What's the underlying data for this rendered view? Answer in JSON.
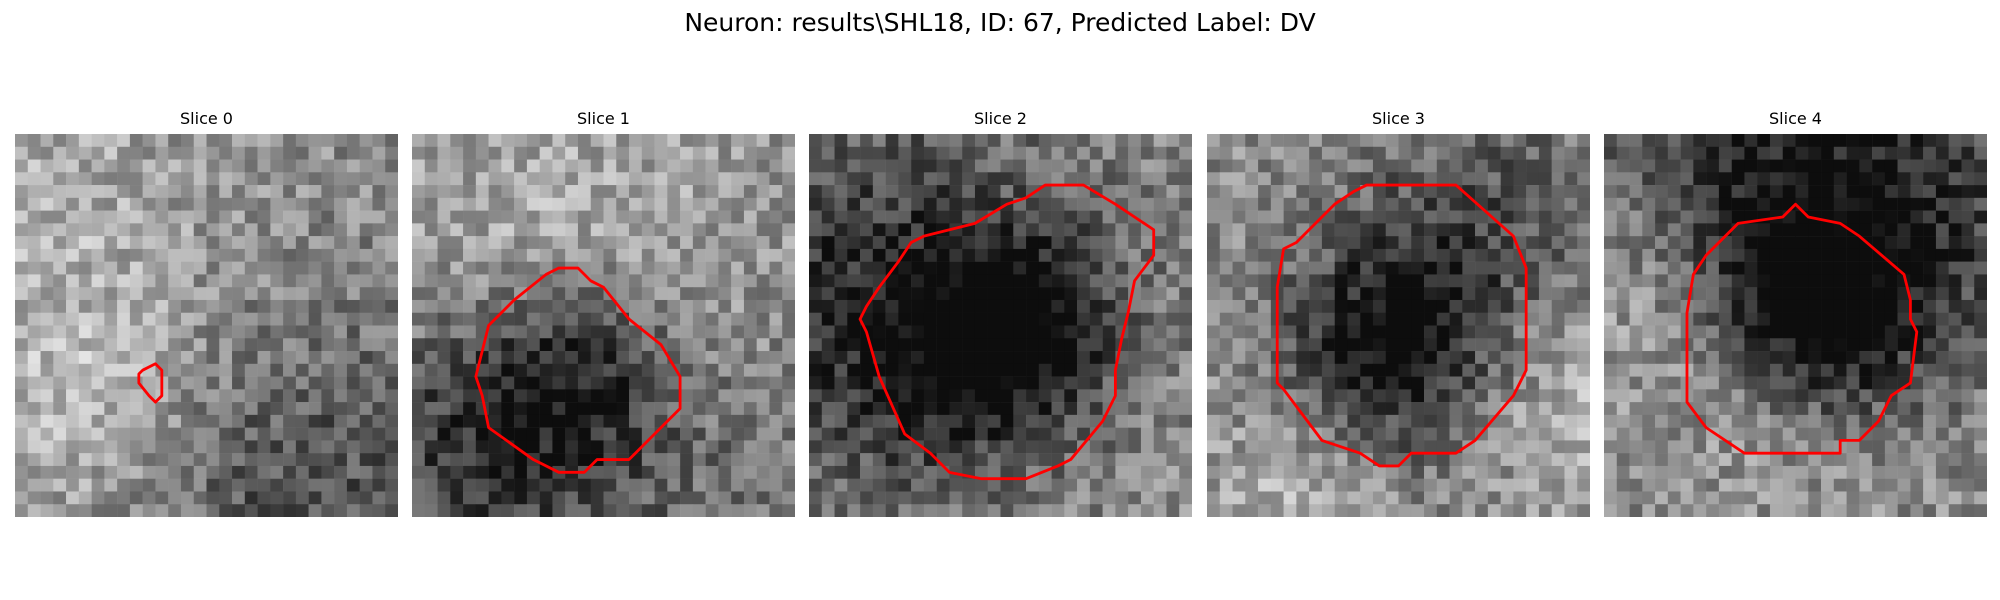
{
  "figure": {
    "title": "Neuron: results\\SHL18, ID: 67, Predicted Label: DV",
    "contour_color": "#ff0000"
  },
  "panels": [
    {
      "title": "Slice 0",
      "seed": 11,
      "blob": 0.0
    },
    {
      "title": "Slice 1",
      "seed": 23,
      "blob": 0.35
    },
    {
      "title": "Slice 2",
      "seed": 37,
      "blob": 0.55
    },
    {
      "title": "Slice 3",
      "seed": 41,
      "blob": 0.5
    },
    {
      "title": "Slice 4",
      "seed": 53,
      "blob": 0.45
    }
  ]
}
